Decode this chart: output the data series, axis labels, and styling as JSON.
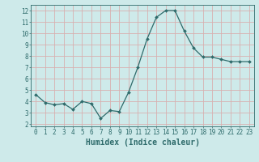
{
  "x": [
    0,
    1,
    2,
    3,
    4,
    5,
    6,
    7,
    8,
    9,
    10,
    11,
    12,
    13,
    14,
    15,
    16,
    17,
    18,
    19,
    20,
    21,
    22,
    23
  ],
  "y": [
    4.6,
    3.9,
    3.7,
    3.8,
    3.3,
    4.0,
    3.8,
    2.5,
    3.2,
    3.1,
    4.8,
    7.0,
    9.5,
    11.4,
    12.0,
    12.0,
    10.2,
    8.7,
    7.9,
    7.9,
    7.7,
    7.5,
    7.5,
    7.5
  ],
  "line_color": "#2e6b6b",
  "marker": "D",
  "marker_size": 2.0,
  "linewidth": 0.9,
  "bg_color": "#ceeaea",
  "grid_color": "#d8b0b0",
  "xlabel": "Humidex (Indice chaleur)",
  "xlabel_fontsize": 7,
  "tick_fontsize": 5.5,
  "ylabel_ticks": [
    2,
    3,
    4,
    5,
    6,
    7,
    8,
    9,
    10,
    11,
    12
  ],
  "xtick_labels": [
    "0",
    "1",
    "2",
    "3",
    "4",
    "5",
    "6",
    "7",
    "8",
    "9",
    "10",
    "11",
    "12",
    "13",
    "14",
    "15",
    "16",
    "17",
    "18",
    "19",
    "20",
    "21",
    "22",
    "23"
  ],
  "ylim": [
    1.8,
    12.5
  ],
  "xlim": [
    -0.5,
    23.5
  ]
}
